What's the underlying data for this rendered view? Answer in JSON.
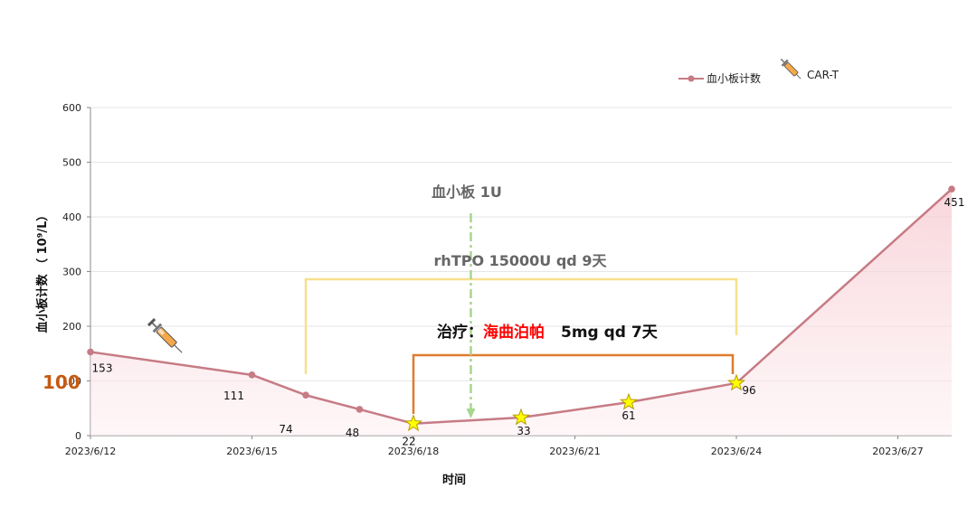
{
  "colors": {
    "line": "#c67b85",
    "area": "#f7d8dd",
    "grid": "#e6e6e6",
    "axis": "#888888",
    "bracket_yellow": "#f7e08c",
    "bracket_orange": "#e07b2e",
    "dash_green": "#a8d58f",
    "label_100": "#c55a11",
    "drug_red": "#ff0000",
    "star_fill": "#ffff00",
    "star_stroke": "#b59a00"
  },
  "legend": {
    "series_label": "血小板计数",
    "icon_label": "CAR-T",
    "icon_name": "syringe-icon"
  },
  "chart_data": {
    "type": "line",
    "xlabel": "时间",
    "ylabel": "血小板计数 （ 10⁹/L）",
    "ylim": [
      0,
      600
    ],
    "yticks": [
      0,
      100,
      200,
      300,
      400,
      500,
      600
    ],
    "xlim": [
      "2023/6/12",
      "2023/6/28"
    ],
    "xticks": [
      "2023/6/12",
      "2023/6/15",
      "2023/6/18",
      "2023/6/21",
      "2023/6/24",
      "2023/6/27"
    ],
    "grid": true,
    "legend_position": "top-right",
    "series": [
      {
        "name": "血小板计数",
        "points": [
          {
            "x": "2023/6/12",
            "y": 153,
            "label": "153"
          },
          {
            "x": "2023/6/15",
            "y": 111,
            "label": "111"
          },
          {
            "x": "2023/6/16",
            "y": 74,
            "label": "74"
          },
          {
            "x": "2023/6/17",
            "y": 48,
            "label": "48"
          },
          {
            "x": "2023/6/18",
            "y": 22,
            "label": "22",
            "star": true
          },
          {
            "x": "2023/6/20",
            "y": 33,
            "label": "33",
            "star": true
          },
          {
            "x": "2023/6/22",
            "y": 61,
            "label": "61",
            "star": true
          },
          {
            "x": "2023/6/24",
            "y": 96,
            "label": "96",
            "star": true
          },
          {
            "x": "2023/6/28",
            "y": 451,
            "label": "451"
          }
        ]
      }
    ],
    "reference_label": "100",
    "car_t_marker": {
      "x": "2023/6/13",
      "label": "CAR-T"
    },
    "annotations": {
      "platelet_transfusion": {
        "text": "血小板  1U",
        "x": "2023/6/19"
      },
      "rhtpo": {
        "text": "rhTPO 15000U qd 9天",
        "start": "2023/6/16",
        "end": "2023/6/24"
      },
      "treatment": {
        "prefix": "治疗：",
        "drug": "海曲泊帕",
        "dose": "5mg qd 7天",
        "start": "2023/6/18",
        "end": "2023/6/24"
      }
    }
  }
}
